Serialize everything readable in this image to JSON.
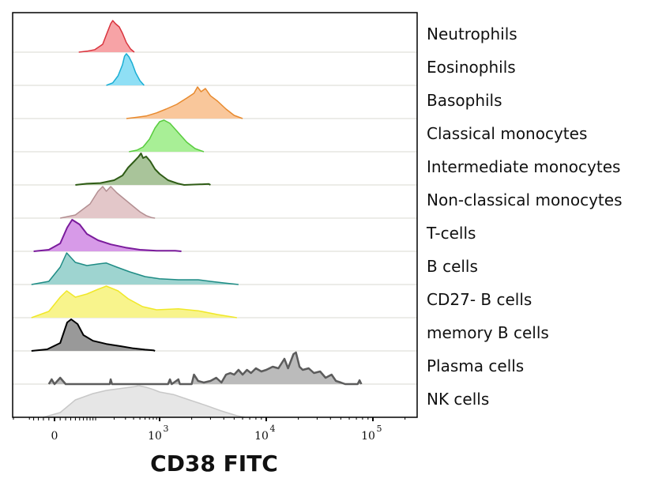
{
  "chart_data": {
    "type": "area",
    "subtype": "stacked-histogram-offset",
    "title": "",
    "xlabel": "CD38 FITC",
    "ylabel": "",
    "x_scale": "biexponential",
    "xlim": [
      -200,
      200000
    ],
    "x_ticks": [
      {
        "value": 0,
        "label": "0",
        "exponent": ""
      },
      {
        "value": 1000,
        "label": "10",
        "exponent": "3"
      },
      {
        "value": 10000,
        "label": "10",
        "exponent": "4"
      },
      {
        "value": 100000,
        "label": "10",
        "exponent": "5"
      }
    ],
    "grid": false,
    "legend": "right-row-labels",
    "series": [
      {
        "name": "Neutrophils",
        "fill": "#f7a3a6",
        "stroke": "#d9333d",
        "points": [
          [
            48,
            0
          ],
          [
            70,
            0.03
          ],
          [
            97,
            0.08
          ],
          [
            131,
            0.25
          ],
          [
            150,
            0.55
          ],
          [
            176,
            0.9
          ],
          [
            190,
            1.0
          ],
          [
            210,
            0.9
          ],
          [
            240,
            0.8
          ],
          [
            269,
            0.6
          ],
          [
            310,
            0.3
          ],
          [
            360,
            0.1
          ],
          [
            410,
            0
          ]
        ]
      },
      {
        "name": "Eosinophils",
        "fill": "#8fdff5",
        "stroke": "#1aaed4",
        "points": [
          [
            150,
            0
          ],
          [
            190,
            0.08
          ],
          [
            230,
            0.3
          ],
          [
            269,
            0.65
          ],
          [
            290,
            0.92
          ],
          [
            310,
            1.0
          ],
          [
            340,
            0.9
          ],
          [
            380,
            0.7
          ],
          [
            430,
            0.4
          ],
          [
            500,
            0.15
          ],
          [
            580,
            0
          ]
        ]
      },
      {
        "name": "Basophils",
        "fill": "#f9c79b",
        "stroke": "#e88a2e",
        "points": [
          [
            310,
            0
          ],
          [
            450,
            0.04
          ],
          [
            623,
            0.08
          ],
          [
            900,
            0.18
          ],
          [
            1150,
            0.3
          ],
          [
            1450,
            0.45
          ],
          [
            1800,
            0.65
          ],
          [
            2100,
            0.8
          ],
          [
            2267,
            1.0
          ],
          [
            2450,
            0.85
          ],
          [
            2690,
            0.95
          ],
          [
            3000,
            0.72
          ],
          [
            3500,
            0.55
          ],
          [
            4200,
            0.3
          ],
          [
            5000,
            0.1
          ],
          [
            6000,
            0
          ]
        ]
      },
      {
        "name": "Classical monocytes",
        "fill": "#a8ef96",
        "stroke": "#59cc3f",
        "points": [
          [
            340,
            0
          ],
          [
            450,
            0.05
          ],
          [
            560,
            0.15
          ],
          [
            700,
            0.4
          ],
          [
            850,
            0.75
          ],
          [
            1000,
            0.95
          ],
          [
            1100,
            1.0
          ],
          [
            1250,
            0.9
          ],
          [
            1500,
            0.6
          ],
          [
            1800,
            0.3
          ],
          [
            2150,
            0.1
          ],
          [
            2600,
            0
          ]
        ]
      },
      {
        "name": "Intermediate monocytes",
        "fill": "#a9c49a",
        "stroke": "#2f5c16",
        "points": [
          [
            40,
            0
          ],
          [
            70,
            0.04
          ],
          [
            120,
            0.06
          ],
          [
            200,
            0.15
          ],
          [
            270,
            0.3
          ],
          [
            330,
            0.55
          ],
          [
            410,
            0.75
          ],
          [
            480,
            0.9
          ],
          [
            520,
            1.0
          ],
          [
            560,
            0.85
          ],
          [
            623,
            0.9
          ],
          [
            720,
            0.75
          ],
          [
            850,
            0.5
          ],
          [
            1000,
            0.35
          ],
          [
            1200,
            0.15
          ],
          [
            1500,
            0.04
          ],
          [
            1700,
            0
          ],
          [
            2900,
            0.03
          ],
          [
            3000,
            0
          ]
        ]
      },
      {
        "name": "Non-classical monocytes",
        "fill": "#e3c7c9",
        "stroke": "#b38f92",
        "points": [
          [
            10,
            0
          ],
          [
            40,
            0.1
          ],
          [
            80,
            0.45
          ],
          [
            110,
            0.85
          ],
          [
            131,
            1.0
          ],
          [
            150,
            0.85
          ],
          [
            176,
            1.0
          ],
          [
            220,
            0.8
          ],
          [
            290,
            0.6
          ],
          [
            380,
            0.4
          ],
          [
            500,
            0.2
          ],
          [
            623,
            0.08
          ],
          [
            750,
            0.02
          ],
          [
            850,
            0
          ]
        ]
      },
      {
        "name": "T-cells",
        "fill": "#d79ae8",
        "stroke": "#7a1b9c",
        "points": [
          [
            -40,
            0
          ],
          [
            -10,
            0.05
          ],
          [
            10,
            0.25
          ],
          [
            23,
            0.75
          ],
          [
            33,
            1.0
          ],
          [
            50,
            0.85
          ],
          [
            70,
            0.55
          ],
          [
            110,
            0.35
          ],
          [
            176,
            0.22
          ],
          [
            300,
            0.12
          ],
          [
            500,
            0.05
          ],
          [
            900,
            0.02
          ],
          [
            1400,
            0.02
          ],
          [
            1600,
            0
          ]
        ]
      },
      {
        "name": "B cells",
        "fill": "#9ed4d0",
        "stroke": "#1f8c85",
        "points": [
          [
            -45,
            0
          ],
          [
            -10,
            0.1
          ],
          [
            10,
            0.55
          ],
          [
            22,
            1.0
          ],
          [
            40,
            0.7
          ],
          [
            70,
            0.6
          ],
          [
            110,
            0.65
          ],
          [
            150,
            0.68
          ],
          [
            220,
            0.55
          ],
          [
            350,
            0.4
          ],
          [
            600,
            0.25
          ],
          [
            1000,
            0.18
          ],
          [
            1500,
            0.15
          ],
          [
            2300,
            0.15
          ],
          [
            3000,
            0.1
          ],
          [
            4000,
            0.05
          ],
          [
            5500,
            0
          ]
        ]
      },
      {
        "name": "CD27- B cells",
        "fill": "#f8f48c",
        "stroke": "#f0e829",
        "points": [
          [
            -45,
            0
          ],
          [
            -10,
            0.2
          ],
          [
            10,
            0.65
          ],
          [
            22,
            0.85
          ],
          [
            40,
            0.65
          ],
          [
            70,
            0.75
          ],
          [
            110,
            0.9
          ],
          [
            150,
            1.0
          ],
          [
            230,
            0.85
          ],
          [
            330,
            0.6
          ],
          [
            550,
            0.35
          ],
          [
            900,
            0.25
          ],
          [
            1500,
            0.28
          ],
          [
            2300,
            0.22
          ],
          [
            3500,
            0.1
          ],
          [
            5300,
            0
          ]
        ]
      },
      {
        "name": "memory B cells",
        "fill": "#999999",
        "stroke": "#000000",
        "points": [
          [
            -45,
            0
          ],
          [
            -13,
            0.05
          ],
          [
            10,
            0.25
          ],
          [
            23,
            0.9
          ],
          [
            31,
            1.0
          ],
          [
            45,
            0.85
          ],
          [
            60,
            0.5
          ],
          [
            90,
            0.32
          ],
          [
            150,
            0.22
          ],
          [
            250,
            0.15
          ],
          [
            400,
            0.08
          ],
          [
            600,
            0.04
          ],
          [
            800,
            0.02
          ],
          [
            850,
            0
          ]
        ]
      },
      {
        "name": "Plasma cells",
        "fill": "#bbbbbb",
        "stroke": "#5c5c5c",
        "points": [
          [
            -10,
            0
          ],
          [
            -5,
            0.15
          ],
          [
            0,
            0
          ],
          [
            10,
            0.2
          ],
          [
            20,
            0
          ],
          [
            170,
            0
          ],
          [
            176,
            0.15
          ],
          [
            185,
            0
          ],
          [
            1200,
            0
          ],
          [
            1250,
            0.15
          ],
          [
            1300,
            0
          ],
          [
            1500,
            0.15
          ],
          [
            1550,
            0
          ],
          [
            2000,
            0
          ],
          [
            2100,
            0.3
          ],
          [
            2300,
            0.1
          ],
          [
            2600,
            0.05
          ],
          [
            3000,
            0.1
          ],
          [
            3400,
            0.2
          ],
          [
            3800,
            0.05
          ],
          [
            4200,
            0.3
          ],
          [
            4600,
            0.35
          ],
          [
            5000,
            0.3
          ],
          [
            5500,
            0.45
          ],
          [
            6000,
            0.3
          ],
          [
            6600,
            0.45
          ],
          [
            7200,
            0.35
          ],
          [
            8000,
            0.5
          ],
          [
            9000,
            0.4
          ],
          [
            10000,
            0.45
          ],
          [
            11500,
            0.55
          ],
          [
            13000,
            0.5
          ],
          [
            14800,
            0.8
          ],
          [
            16000,
            0.5
          ],
          [
            18000,
            0.95
          ],
          [
            19000,
            1.0
          ],
          [
            20500,
            0.55
          ],
          [
            22000,
            0.45
          ],
          [
            25000,
            0.5
          ],
          [
            28000,
            0.35
          ],
          [
            32000,
            0.4
          ],
          [
            36000,
            0.2
          ],
          [
            41000,
            0.3
          ],
          [
            45000,
            0.1
          ],
          [
            50000,
            0.05
          ],
          [
            55000,
            0
          ],
          [
            72000,
            0
          ],
          [
            75000,
            0.12
          ],
          [
            78000,
            0
          ]
        ]
      },
      {
        "name": "NK cells",
        "fill": "#e6e6e6",
        "stroke": "#c8c8c8",
        "points": [
          [
            -20,
            0
          ],
          [
            10,
            0.15
          ],
          [
            40,
            0.55
          ],
          [
            90,
            0.75
          ],
          [
            150,
            0.85
          ],
          [
            270,
            0.92
          ],
          [
            410,
            0.97
          ],
          [
            480,
            1.0
          ],
          [
            623,
            0.95
          ],
          [
            800,
            0.88
          ],
          [
            1000,
            0.8
          ],
          [
            1350,
            0.72
          ],
          [
            1900,
            0.55
          ],
          [
            2700,
            0.38
          ],
          [
            3800,
            0.2
          ],
          [
            5300,
            0.05
          ],
          [
            6300,
            0
          ]
        ]
      }
    ]
  }
}
